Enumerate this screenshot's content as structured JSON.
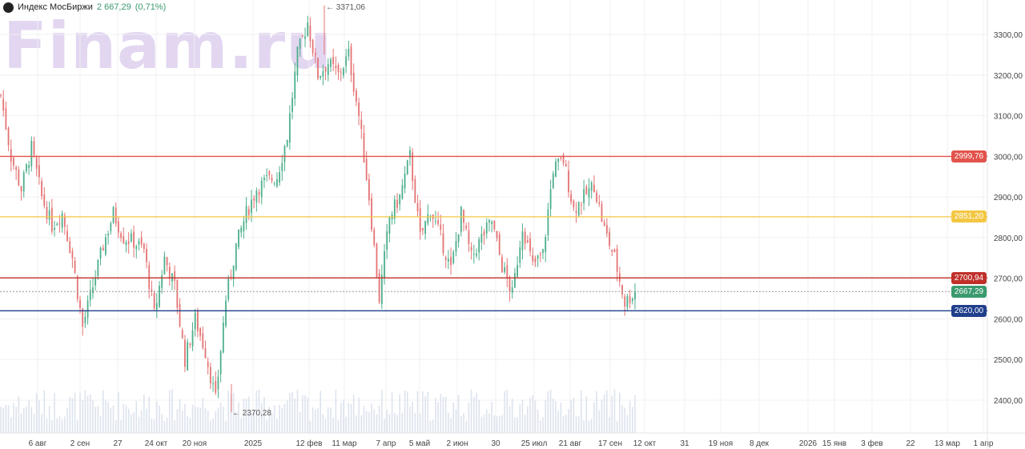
{
  "header": {
    "title": "Индекс МосБиржи",
    "price": "2 667,29",
    "change": "(0,71%)",
    "icon": "moex-logo-icon"
  },
  "watermark": "Finam.ru",
  "colors": {
    "up": "#4caf8a",
    "down": "#e57373",
    "volume": "#dde3ee",
    "grid": "#f0f0f0"
  },
  "chart_data": {
    "type": "candlestick",
    "title": "",
    "y_ticks": [
      "3300,00",
      "3200,00",
      "3100,00",
      "3000,00",
      "2900,00",
      "2800,00",
      "2700,00",
      "2600,00",
      "2500,00",
      "2400,00"
    ],
    "y_tick_values": [
      3300,
      3200,
      3100,
      3000,
      2900,
      2800,
      2700,
      2600,
      2500,
      2400
    ],
    "x_ticks": [
      "6 авг",
      "2 сен",
      "27",
      "24 окт",
      "20 ноя",
      "2025",
      "12 фев",
      "11 мар",
      "7 апр",
      "5 май",
      "2 июн",
      "30",
      "25 июл",
      "21 авг",
      "17 сен",
      "12 окт",
      "31",
      "19 ноя",
      "8 дек",
      "2026",
      "15 янв",
      "3 фев",
      "22",
      "13 мар",
      "1 апр"
    ],
    "approx_closes": [
      3150,
      3000,
      2920,
      3020,
      2900,
      2830,
      2860,
      2750,
      2580,
      2680,
      2780,
      2860,
      2800,
      2790,
      2770,
      2610,
      2750,
      2680,
      2500,
      2600,
      2520,
      2400,
      2650,
      2780,
      2860,
      2920,
      2940,
      2950,
      3050,
      3250,
      3330,
      3200,
      3230,
      3200,
      3250,
      3100,
      2900,
      2650,
      2850,
      2900,
      3000,
      2800,
      2870,
      2800,
      2720,
      2860,
      2750,
      2800,
      2840,
      2730,
      2660,
      2830,
      2730,
      2760,
      2970,
      2990,
      2870,
      2900,
      2930,
      2820,
      2750,
      2640,
      2667.29
    ],
    "annotations": {
      "high": "3371,06",
      "high_value": 3371.06,
      "low": "2370,28",
      "low_value": 2370.28
    },
    "levels": [
      {
        "value": 2999.76,
        "label": "2999,76",
        "color": "#e2534b",
        "style": "solid"
      },
      {
        "value": 2851.2,
        "label": "2851,20",
        "color": "#f3c744",
        "style": "solid"
      },
      {
        "value": 2700.94,
        "label": "2700,94",
        "color": "#c0302a",
        "style": "solid"
      },
      {
        "value": 2667.29,
        "label": "2667,29",
        "color": "#3a9a6e",
        "style": "dotted"
      },
      {
        "value": 2620.0,
        "label": "2620,00",
        "color": "#1f3f8c",
        "style": "solid"
      }
    ]
  }
}
